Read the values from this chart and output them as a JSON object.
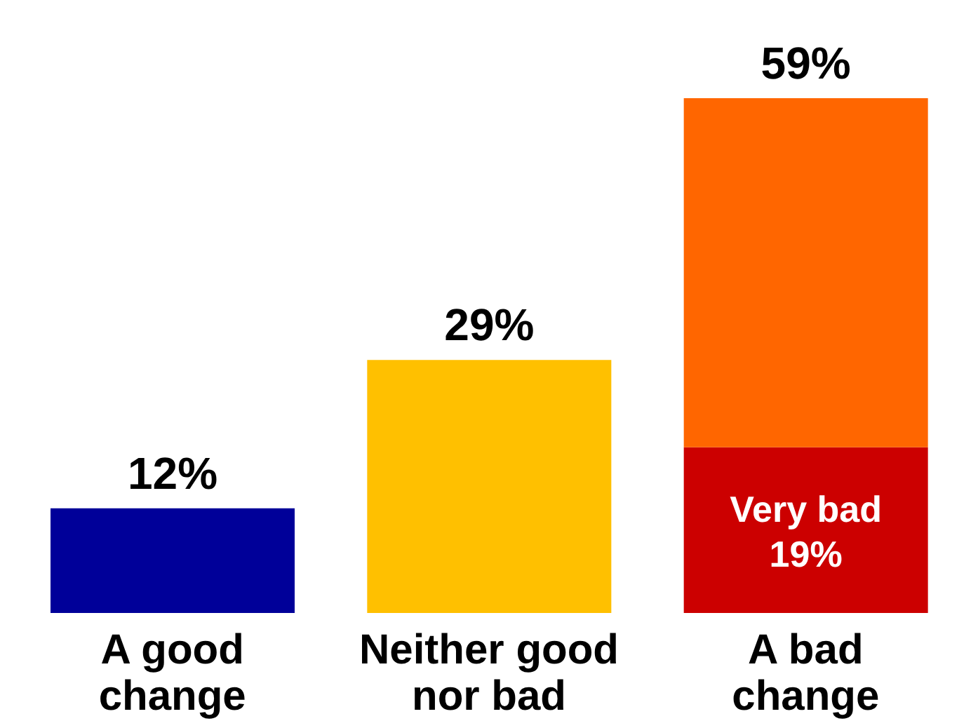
{
  "chart_data": {
    "type": "bar",
    "categories": [
      "A good change",
      "Neither good nor bad",
      "A bad change"
    ],
    "stacked": true,
    "series": [
      {
        "name": "Very bad",
        "color": "#cc0000",
        "values": [
          null,
          null,
          19
        ],
        "value_labels": [
          null,
          null,
          "19%"
        ]
      },
      {
        "colors": [
          "#000099",
          "#ffc000",
          "#ff6600"
        ],
        "values": [
          12,
          29,
          40
        ]
      }
    ],
    "totals": [
      "12%",
      "29%",
      "59%"
    ]
  }
}
